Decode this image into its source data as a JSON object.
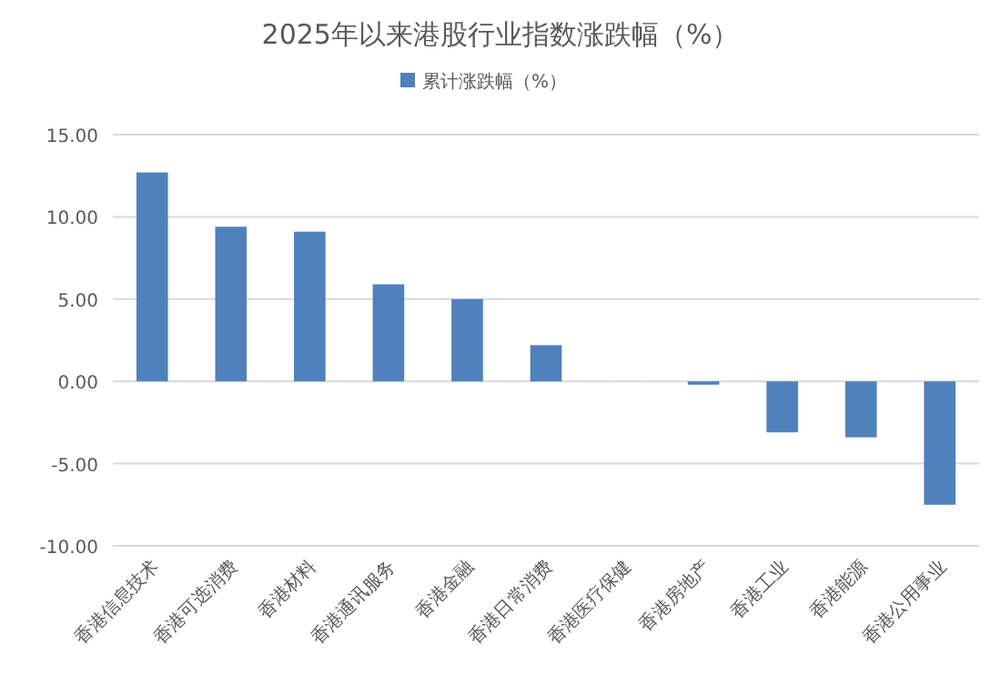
{
  "chart_data": {
    "type": "bar",
    "title": "2025年以来港股行业指数涨跌幅（%）",
    "categories": [
      "香港信息技术",
      "香港可选消费",
      "香港材料",
      "香港通讯服务",
      "香港金融",
      "香港日常消费",
      "香港医疗保健",
      "香港房地产",
      "香港工业",
      "香港能源",
      "香港公用事业"
    ],
    "series": [
      {
        "name": "累计涨跌幅（%）",
        "color": "#4f81bd",
        "values": [
          12.7,
          9.4,
          9.1,
          5.9,
          5.0,
          2.2,
          0,
          -0.2,
          -3.1,
          -3.4,
          -7.5
        ]
      }
    ],
    "ylim": [
      -10,
      15
    ],
    "yticks": [
      {
        "value": -10,
        "label": "-10.00"
      },
      {
        "value": -5,
        "label": "-5.00"
      },
      {
        "value": 0,
        "label": "0.00"
      },
      {
        "value": 5,
        "label": "5.00"
      },
      {
        "value": 10,
        "label": "10.00"
      },
      {
        "value": 15,
        "label": "15.00"
      }
    ],
    "grid": "y",
    "legend": "top"
  }
}
